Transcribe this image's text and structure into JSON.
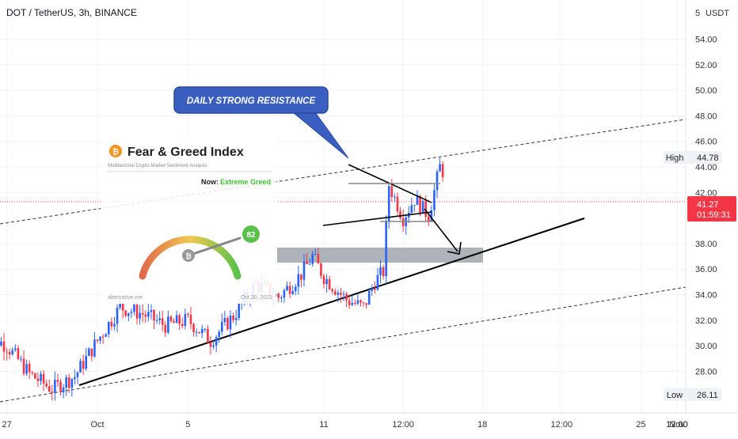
{
  "header": {
    "symbol_title": "DOT / TetherUS, 3h, BINANCE",
    "currency": "USDT",
    "scale_prefix": "5"
  },
  "price_axis": {
    "ticks": [
      "54.00",
      "52.00",
      "50.00",
      "48.00",
      "46.00",
      "44.00",
      "42.00",
      "38.00",
      "36.00",
      "34.00",
      "32.00",
      "30.00",
      "28.00"
    ],
    "high_label": "High",
    "high_value": "44.78",
    "low_label": "Low",
    "low_value": "26.11",
    "last_price": "41.27",
    "countdown": "01:59:31"
  },
  "time_axis": {
    "ticks": [
      "27",
      "Oct",
      "5",
      "11",
      "12:00",
      "18",
      "12:00",
      "25",
      "12:00",
      "Nov",
      "12:00"
    ]
  },
  "annotation": {
    "resistance_text": "DAILY STRONG RESISTANCE"
  },
  "fear_greed": {
    "title": "Fear & Greed Index",
    "subtitle": "Multifactorial Crypto Market Sentiment Analysis",
    "now_label": "Now:",
    "now_value": "Extreme Greed",
    "value": "82",
    "footer_left": "alternative.me",
    "footer_right": "Oct 20, 2021"
  },
  "colors": {
    "up": "#2962ff",
    "down": "#f23645",
    "extreme_greed": "#3fc233",
    "last_price_bg": "#f23645",
    "callout": "#3b5fc0",
    "grid": "#f0f3fa"
  },
  "chart_data": {
    "type": "candlestick",
    "title": "DOT / TetherUS, 3h, BINANCE",
    "ylabel": "USDT",
    "ylim": [
      25.0,
      56.0
    ],
    "x_start": "2021-09-26",
    "x_end": "2021-11-02",
    "grid": true,
    "close_path": [
      [
        "2021-09-26T00:00",
        31.0
      ],
      [
        "2021-09-27T00:00",
        30.0
      ],
      [
        "2021-09-28T00:00",
        27.8
      ],
      [
        "2021-09-29T00:00",
        26.6
      ],
      [
        "2021-09-30T00:00",
        27.6
      ],
      [
        "2021-10-01T00:00",
        30.4
      ],
      [
        "2021-10-02T00:00",
        33.0
      ],
      [
        "2021-10-03T00:00",
        32.5
      ],
      [
        "2021-10-04T00:00",
        31.6
      ],
      [
        "2021-10-05T00:00",
        32.0
      ],
      [
        "2021-10-06T00:00",
        30.4
      ],
      [
        "2021-10-07T00:00",
        32.3
      ],
      [
        "2021-10-08T00:00",
        34.8
      ],
      [
        "2021-10-09T00:00",
        33.8
      ],
      [
        "2021-10-10T00:00",
        35.6
      ],
      [
        "2021-10-10T12:00",
        37.0
      ],
      [
        "2021-10-11T00:00",
        35.4
      ],
      [
        "2021-10-12T00:00",
        33.6
      ],
      [
        "2021-10-12T18:00",
        33.0
      ],
      [
        "2021-10-13T06:00",
        35.0
      ],
      [
        "2021-10-13T15:00",
        35.8
      ],
      [
        "2021-10-13T21:00",
        42.6
      ],
      [
        "2021-10-14T12:00",
        40.0
      ],
      [
        "2021-10-15T00:00",
        41.5
      ],
      [
        "2021-10-15T15:00",
        40.2
      ],
      [
        "2021-10-16T03:00",
        44.0
      ],
      [
        "2021-10-16T18:00",
        42.4
      ],
      [
        "2021-10-17T06:00",
        41.2
      ],
      [
        "2021-10-17T18:00",
        42.0
      ],
      [
        "2021-10-18T00:00",
        40.6
      ],
      [
        "2021-10-18T12:00",
        42.5
      ],
      [
        "2021-10-19T00:00",
        40.5
      ],
      [
        "2021-10-19T12:00",
        40.9
      ],
      [
        "2021-10-20T00:00",
        40.7
      ],
      [
        "2021-10-20T12:00",
        41.3
      ],
      [
        "2021-10-20T21:00",
        41.27
      ]
    ],
    "high": 44.78,
    "low": 26.11,
    "last": 41.27,
    "fear_greed_value": 82
  }
}
